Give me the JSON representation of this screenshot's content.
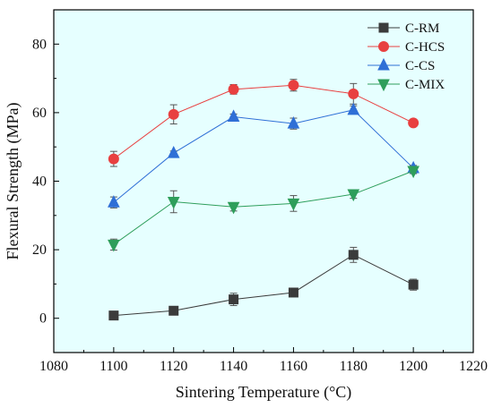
{
  "chart_data": {
    "type": "line",
    "xlabel": "Sintering Temperature (°C)",
    "ylabel": "Flexural Strength (MPa)",
    "xlim": [
      1080,
      1220
    ],
    "ylim": [
      -10,
      90
    ],
    "xticks": [
      1080,
      1100,
      1120,
      1140,
      1160,
      1180,
      1200,
      1220
    ],
    "yticks": [
      0,
      20,
      40,
      60,
      80
    ],
    "x": [
      1100,
      1120,
      1140,
      1160,
      1180,
      1200
    ],
    "background": "#e6ffff",
    "legend_position": "top-right",
    "series": [
      {
        "name": "C-RM",
        "color": "#3b3b3b",
        "marker": "square",
        "values": [
          0.8,
          2.2,
          5.5,
          7.5,
          18.5,
          9.8
        ],
        "errors": [
          0.5,
          0.5,
          1.8,
          0.8,
          2.2,
          1.6
        ]
      },
      {
        "name": "C-HCS",
        "color": "#e84040",
        "marker": "circle",
        "values": [
          46.5,
          59.5,
          66.8,
          68.0,
          65.5,
          57.0
        ],
        "errors": [
          2.2,
          2.8,
          1.4,
          1.7,
          3.0,
          0.8
        ]
      },
      {
        "name": "C-CS",
        "color": "#2f6fd6",
        "marker": "triangle-up",
        "values": [
          33.8,
          48.2,
          58.8,
          56.8,
          60.8,
          43.8
        ],
        "errors": [
          1.6,
          0.6,
          0.8,
          1.6,
          1.2,
          0.8
        ]
      },
      {
        "name": "C-MIX",
        "color": "#2e9e5b",
        "marker": "triangle-down",
        "values": [
          21.5,
          34.0,
          32.5,
          33.5,
          36.2,
          43.0
        ],
        "errors": [
          1.6,
          3.2,
          1.2,
          2.3,
          1.2,
          0.8
        ]
      }
    ]
  }
}
